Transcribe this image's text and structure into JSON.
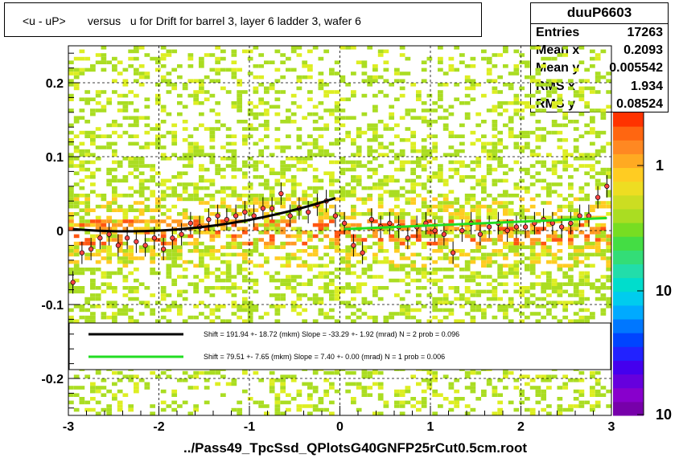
{
  "title": "<u - uP>       versus   u for Drift for barrel 3, layer 6 ladder 3, wafer 6",
  "footer": "../Pass49_TpcSsd_QPlotsG40GNFP25rCut0.5cm.root",
  "stats": {
    "name": "duuP6603",
    "rows": [
      {
        "label": "Entries",
        "value": "17263"
      },
      {
        "label": "Mean x",
        "value": "0.2093"
      },
      {
        "label": "Mean y",
        "value": "0.005542"
      },
      {
        "label": "RMS x",
        "value": "1.934"
      },
      {
        "label": "RMS y",
        "value": "0.08524"
      }
    ]
  },
  "legend": [
    {
      "color": "#000000",
      "text": "Shift =   191.94 +- 18.72 (mkm) Slope =   -33.29 +- 1.92 (mrad)  N = 2 prob = 0.096"
    },
    {
      "color": "#22dd22",
      "text": "Shift =    79.51 +- 7.65 (mkm) Slope =     7.40 +- 0.00 (mrad)  N = 1 prob = 0.006"
    }
  ],
  "colors": {
    "black_fit": "#000000",
    "green_fit": "#22dd22",
    "profile_marker": "#ff4444"
  },
  "chart_data": {
    "type": "heatmap",
    "xlim": [
      -3,
      3
    ],
    "ylim": [
      -0.25,
      0.25
    ],
    "x_ticks": [
      "-3",
      "-2",
      "-1",
      "0",
      "1",
      "2",
      "3"
    ],
    "y_ticks": [
      "-0.2",
      "-0.1",
      "0",
      "0.1",
      "0.2"
    ],
    "y_tick_values": [
      -0.2,
      -0.1,
      0,
      0.1,
      0.2
    ],
    "x_tick_values": [
      -3,
      -2,
      -1,
      0,
      1,
      2,
      3
    ],
    "z_ticks": [
      "1",
      "10",
      "10"
    ],
    "z_scale": "log",
    "grid": true,
    "profile_points": {
      "x": [
        -2.95,
        -2.85,
        -2.75,
        -2.65,
        -2.55,
        -2.45,
        -2.35,
        -2.25,
        -2.15,
        -2.05,
        -1.95,
        -1.85,
        -1.75,
        -1.65,
        -1.55,
        -1.45,
        -1.35,
        -1.25,
        -1.15,
        -1.05,
        -0.95,
        -0.85,
        -0.75,
        -0.65,
        -0.55,
        -0.45,
        -0.35,
        -0.25,
        -0.15,
        -0.05,
        0.05,
        0.15,
        0.25,
        0.35,
        0.45,
        0.55,
        0.65,
        0.75,
        0.85,
        0.95,
        1.05,
        1.15,
        1.25,
        1.35,
        1.45,
        1.55,
        1.65,
        1.75,
        1.85,
        1.95,
        2.05,
        2.15,
        2.25,
        2.35,
        2.45,
        2.55,
        2.65,
        2.75,
        2.85,
        2.95
      ],
      "y": [
        -0.07,
        -0.03,
        -0.025,
        -0.01,
        -0.005,
        -0.02,
        -0.01,
        -0.015,
        -0.02,
        -0.01,
        -0.025,
        -0.01,
        -0.005,
        0.01,
        0.005,
        0.015,
        0.02,
        0.015,
        0.02,
        0.025,
        0.02,
        0.03,
        0.03,
        0.05,
        0.02,
        0.03,
        0.025,
        0.035,
        0.04,
        0.02,
        0.01,
        -0.02,
        -0.03,
        0.015,
        0.005,
        0.01,
        0.005,
        -0.01,
        0.005,
        0.01,
        0.0,
        -0.005,
        -0.03,
        0.0,
        0.01,
        -0.005,
        0.005,
        0.01,
        0.0,
        0.005,
        0.005,
        0.01,
        0.015,
        0.01,
        0.005,
        0.01,
        0.02,
        0.02,
        0.045,
        0.06
      ]
    },
    "fit_black": {
      "x_range": [
        -2.95,
        -0.05
      ],
      "shape": "quadratic"
    },
    "fit_green": {
      "x_range": [
        0.05,
        2.95
      ],
      "shape": "linear"
    }
  }
}
